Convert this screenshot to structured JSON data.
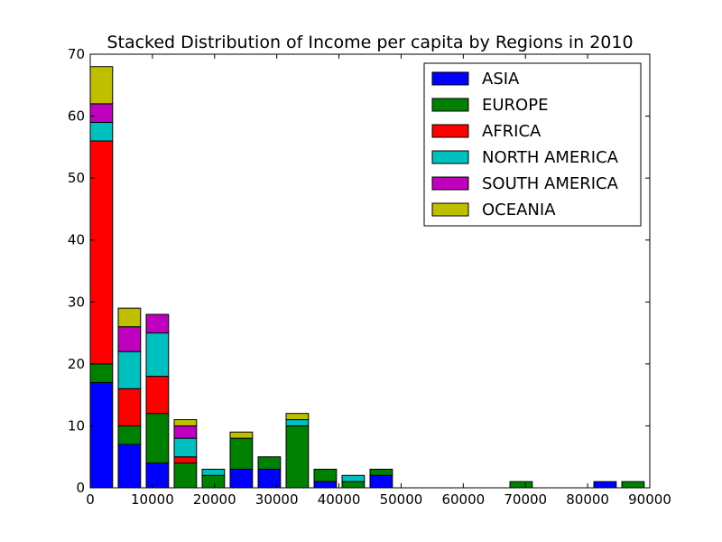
{
  "chart_data": {
    "type": "bar",
    "stacked": true,
    "title": "Stacked Distribution of Income per capita by Regions in 2010",
    "xlabel": "",
    "ylabel": "",
    "xlim": [
      0,
      90000
    ],
    "ylim": [
      0,
      70
    ],
    "xticks": [
      "0",
      "10000",
      "20000",
      "30000",
      "40000",
      "50000",
      "60000",
      "70000",
      "80000",
      "90000"
    ],
    "yticks": [
      "0",
      "10",
      "20",
      "30",
      "40",
      "50",
      "60",
      "70"
    ],
    "bin_width": 4500,
    "bin_starts": [
      0,
      4500,
      9000,
      13500,
      18000,
      22500,
      27000,
      31500,
      36000,
      40500,
      45000,
      49500,
      54000,
      58500,
      63000,
      67500,
      72000,
      76500,
      81000,
      85500
    ],
    "legend_position": "top-right",
    "grid": false,
    "series": [
      {
        "name": "ASIA",
        "color": "#0000ff",
        "values": [
          17,
          7,
          4,
          0,
          0,
          3,
          3,
          0,
          1,
          0,
          2,
          0,
          0,
          0,
          0,
          0,
          0,
          0,
          1,
          0
        ]
      },
      {
        "name": "EUROPE",
        "color": "#008000",
        "values": [
          3,
          3,
          8,
          4,
          2,
          5,
          2,
          10,
          2,
          1,
          1,
          0,
          0,
          0,
          0,
          1,
          0,
          0,
          0,
          1
        ]
      },
      {
        "name": "AFRICA",
        "color": "#ff0000",
        "values": [
          36,
          6,
          6,
          1,
          0,
          0,
          0,
          0,
          0,
          0,
          0,
          0,
          0,
          0,
          0,
          0,
          0,
          0,
          0,
          0
        ]
      },
      {
        "name": "NORTH AMERICA",
        "color": "#00bfbf",
        "values": [
          3,
          6,
          7,
          3,
          1,
          0,
          0,
          1,
          0,
          1,
          0,
          0,
          0,
          0,
          0,
          0,
          0,
          0,
          0,
          0
        ]
      },
      {
        "name": "SOUTH AMERICA",
        "color": "#bf00bf",
        "values": [
          3,
          4,
          3,
          2,
          0,
          0,
          0,
          0,
          0,
          0,
          0,
          0,
          0,
          0,
          0,
          0,
          0,
          0,
          0,
          0
        ]
      },
      {
        "name": "OCEANIA",
        "color": "#bfbf00",
        "values": [
          6,
          3,
          0,
          1,
          0,
          1,
          0,
          1,
          0,
          0,
          0,
          0,
          0,
          0,
          0,
          0,
          0,
          0,
          0,
          0
        ]
      }
    ]
  }
}
